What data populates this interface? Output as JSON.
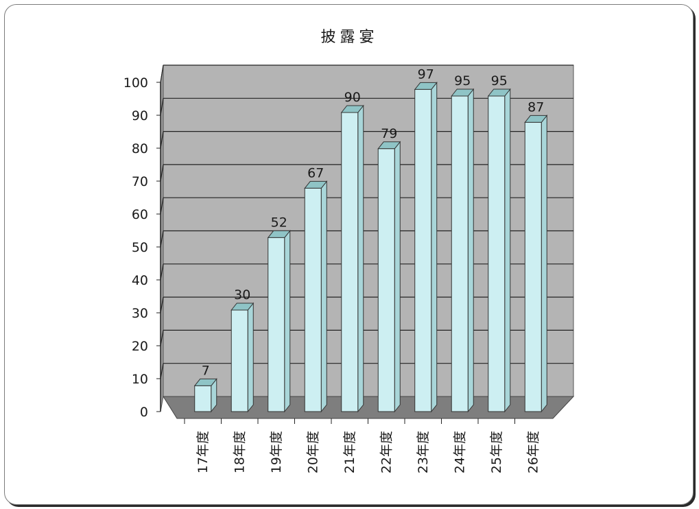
{
  "chart_data": {
    "type": "bar",
    "title": "披露宴",
    "categories": [
      "17年度",
      "18年度",
      "19年度",
      "20年度",
      "21年度",
      "22年度",
      "23年度",
      "24年度",
      "25年度",
      "26年度"
    ],
    "values": [
      7,
      30,
      52,
      67,
      90,
      79,
      97,
      95,
      95,
      87
    ],
    "ylim": [
      0,
      100
    ],
    "yticks": [
      0,
      10,
      20,
      30,
      40,
      50,
      60,
      70,
      80,
      90,
      100
    ],
    "grid": true,
    "data_labels": true,
    "style": "3d-column",
    "colors": {
      "bar": "#cdeff2",
      "bar_top": "#8fc4c6",
      "wall": "#b4b4b4",
      "floor": "#7e7e7e",
      "grid": "#222222"
    }
  }
}
